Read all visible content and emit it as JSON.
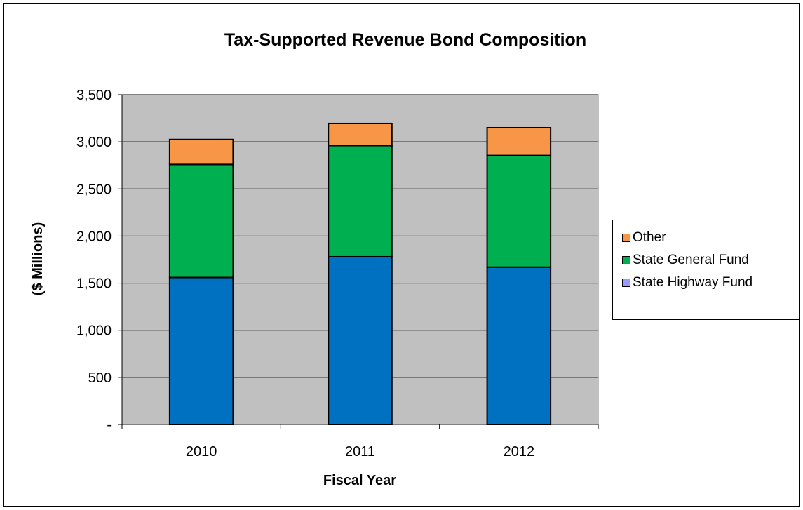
{
  "chart_data": {
    "type": "bar",
    "stacked": true,
    "title": "Tax-Supported Revenue Bond Composition",
    "xlabel": "Fiscal Year",
    "ylabel": "($ Millions)",
    "categories": [
      "2010",
      "2011",
      "2012"
    ],
    "ylim": [
      0,
      3500
    ],
    "yticks": [
      0,
      500,
      1000,
      1500,
      2000,
      2500,
      3000,
      3500
    ],
    "ytick_labels": [
      "-",
      "500",
      "1,000",
      "1,500",
      "2,000",
      "2,500",
      "3,000",
      "3,500"
    ],
    "grid": true,
    "legend_position": "right",
    "series": [
      {
        "name": "State Highway Fund",
        "values": [
          1560,
          1780,
          1670
        ],
        "color": "#0070C0",
        "legend_color": "#9999FF"
      },
      {
        "name": "State General Fund",
        "values": [
          1200,
          1180,
          1185
        ],
        "color": "#00B050",
        "legend_color": "#00B050"
      },
      {
        "name": "Other",
        "values": [
          265,
          235,
          295
        ],
        "color": "#F79646",
        "legend_color": "#F79646"
      }
    ],
    "legend_order": [
      "Other",
      "State General Fund",
      "State Highway Fund"
    ],
    "plot_background": "#C0C0C0"
  }
}
